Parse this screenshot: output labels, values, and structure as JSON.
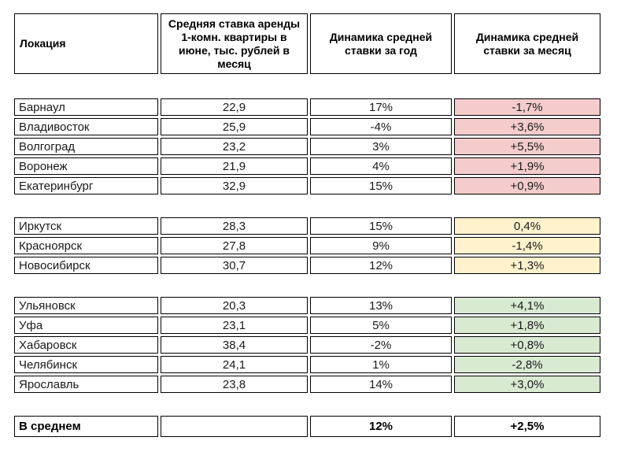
{
  "table": {
    "headers": [
      "Локация",
      "Средняя ставка аренды 1-комн. квартиры в июне, тыс. рублей в месяц",
      "Динамика средней ставки за год",
      "Динамика средней ставки за месяц"
    ],
    "groups": [
      {
        "month_color": "#f4cccc",
        "rows": [
          {
            "location": "Барнаул",
            "rate": "22,9",
            "year": "17%",
            "month": "-1,7%"
          },
          {
            "location": "Владивосток",
            "rate": "25,9",
            "year": "-4%",
            "month": "+3,6%"
          },
          {
            "location": "Волгоград",
            "rate": "23,2",
            "year": "3%",
            "month": "+5,5%"
          },
          {
            "location": "Воронеж",
            "rate": "21,9",
            "year": "4%",
            "month": "+1,9%"
          },
          {
            "location": "Екатеринбург",
            "rate": "32,9",
            "year": "15%",
            "month": "+0,9%"
          }
        ]
      },
      {
        "month_color": "#fff2cc",
        "rows": [
          {
            "location": "Иркутск",
            "rate": "28,3",
            "year": "15%",
            "month": "0,4%"
          },
          {
            "location": "Красноярск",
            "rate": "27,8",
            "year": "9%",
            "month": "-1,4%"
          },
          {
            "location": "Новосибирск",
            "rate": "30,7",
            "year": "12%",
            "month": "+1,3%"
          }
        ]
      },
      {
        "month_color": "#d9ead3",
        "rows": [
          {
            "location": "Ульяновск",
            "rate": "20,3",
            "year": "13%",
            "month": "+4,1%"
          },
          {
            "location": "Уфа",
            "rate": "23,1",
            "year": "5%",
            "month": "+1,8%"
          },
          {
            "location": "Хабаровск",
            "rate": "38,4",
            "year": "-2%",
            "month": "+0,8%"
          },
          {
            "location": "Челябинск",
            "rate": "24,1",
            "year": "1%",
            "month": "-2,8%"
          },
          {
            "location": "Ярославль",
            "rate": "23,8",
            "year": "14%",
            "month": "+3,0%"
          }
        ]
      }
    ],
    "average": {
      "location": "В среднем",
      "rate": "",
      "year": "12%",
      "month": "+2,5%"
    }
  },
  "chart_data": {
    "type": "table",
    "title": "Средняя ставка аренды 1-комн. квартиры в июне",
    "columns": [
      "Локация",
      "Средняя ставка аренды 1-комн. квартиры в июне, тыс. рублей в месяц",
      "Динамика средней ставки за год",
      "Динамика средней ставки за месяц"
    ],
    "rows": [
      [
        "Барнаул",
        22.9,
        "17%",
        "-1,7%"
      ],
      [
        "Владивосток",
        25.9,
        "-4%",
        "+3,6%"
      ],
      [
        "Волгоград",
        23.2,
        "3%",
        "+5,5%"
      ],
      [
        "Воронеж",
        21.9,
        "4%",
        "+1,9%"
      ],
      [
        "Екатеринбург",
        32.9,
        "15%",
        "+0,9%"
      ],
      [
        "Иркутск",
        28.3,
        "15%",
        "0,4%"
      ],
      [
        "Красноярск",
        27.8,
        "9%",
        "-1,4%"
      ],
      [
        "Новосибирск",
        30.7,
        "12%",
        "+1,3%"
      ],
      [
        "Ульяновск",
        20.3,
        "13%",
        "+4,1%"
      ],
      [
        "Уфа",
        23.1,
        "5%",
        "+1,8%"
      ],
      [
        "Хабаровск",
        38.4,
        "-2%",
        "+0,8%"
      ],
      [
        "Челябинск",
        24.1,
        "1%",
        "-2,8%"
      ],
      [
        "Ярославль",
        23.8,
        "14%",
        "+3,0%"
      ],
      [
        "В среднем",
        null,
        "12%",
        "+2,5%"
      ]
    ],
    "group_row_colors": {
      "rows_1_5": "#f4cccc",
      "rows_6_8": "#fff2cc",
      "rows_9_13": "#d9ead3"
    },
    "layout": "grouped rows with blank separators; last column background color-coded per group; grid on"
  }
}
